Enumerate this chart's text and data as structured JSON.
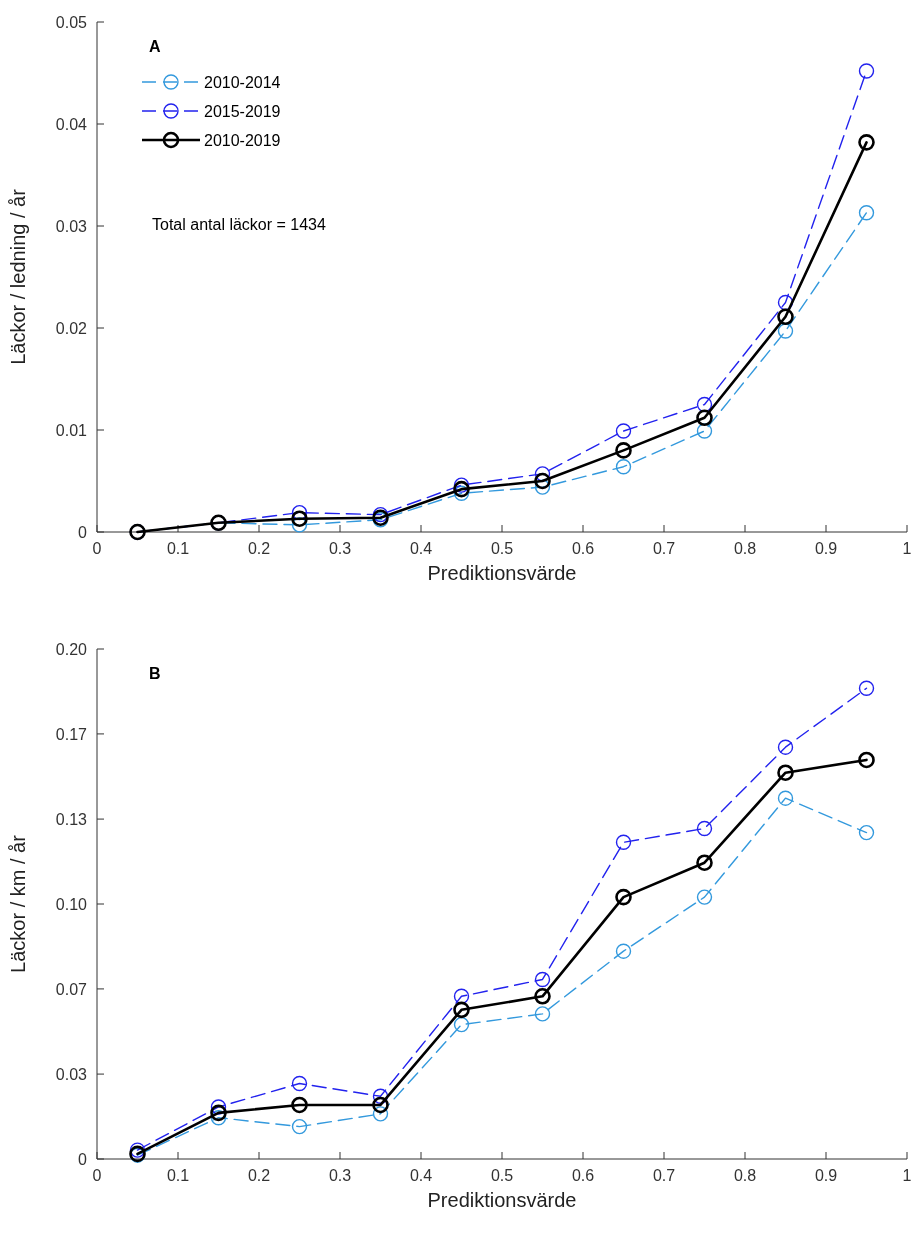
{
  "chart_data": [
    {
      "type": "line",
      "xlabel": "Prediktionsvärde",
      "ylabel": "Läckor / ledning / år",
      "x": [
        0.05,
        0.15,
        0.25,
        0.35,
        0.45,
        0.55,
        0.65,
        0.75,
        0.85,
        0.95
      ],
      "xlim": [
        0,
        1
      ],
      "xticks": [
        0,
        0.1,
        0.2,
        0.3,
        0.4,
        0.5,
        0.6,
        0.7,
        0.8,
        0.9,
        1
      ],
      "ylim": [
        0,
        0.05
      ],
      "yticks": [
        0,
        0.01,
        0.02,
        0.03,
        0.04,
        0.05
      ],
      "grid": false,
      "legend": "top left",
      "marker": "circle",
      "annotations": [
        "A",
        "Total antal läckor = 1434"
      ],
      "series": [
        {
          "name": "2010-2014",
          "color": "#3399dd",
          "line_style": "dashed",
          "values": [
            0,
            0.0009,
            0.0007,
            0.0012,
            0.0038,
            0.0044,
            0.0064,
            0.0099,
            0.0197,
            0.0313
          ]
        },
        {
          "name": "2015-2019",
          "color": "#2222ee",
          "line_style": "dashed",
          "values": [
            0,
            0.0009,
            0.0019,
            0.0017,
            0.0046,
            0.0057,
            0.0099,
            0.0125,
            0.0225,
            0.0452
          ]
        },
        {
          "name": "2010-2019",
          "color": "#000000",
          "line_style": "solid",
          "values": [
            0,
            0.0009,
            0.0013,
            0.0014,
            0.0042,
            0.005,
            0.008,
            0.0112,
            0.0211,
            0.0382
          ]
        }
      ]
    },
    {
      "type": "line",
      "xlabel": "Prediktionsvärde",
      "ylabel": "Läckor / km / år",
      "x": [
        0.05,
        0.15,
        0.25,
        0.35,
        0.45,
        0.55,
        0.65,
        0.75,
        0.85,
        0.95
      ],
      "xlim": [
        0,
        1
      ],
      "xticks": [
        0,
        0.1,
        0.2,
        0.3,
        0.4,
        0.5,
        0.6,
        0.7,
        0.8,
        0.9,
        1
      ],
      "ylim": [
        0,
        0.2
      ],
      "yticks": [
        0,
        {
          "value": 0.0333,
          "label": "0.03"
        },
        {
          "value": 0.0667,
          "label": "0.07"
        },
        {
          "value": 0.1,
          "label": "0.10"
        },
        {
          "value": 0.1333,
          "label": "0.13"
        },
        {
          "value": 0.1667,
          "label": "0.17"
        },
        {
          "value": 0.2,
          "label": "0.20"
        }
      ],
      "grid": false,
      "marker": "circle",
      "annotations": [
        "B"
      ],
      "series": [
        {
          "color": "#3399dd",
          "line_style": "dashed",
          "values": [
            0.0015,
            0.0162,
            0.0127,
            0.0177,
            0.0527,
            0.0569,
            0.0815,
            0.1027,
            0.1415,
            0.128
          ]
        },
        {
          "color": "#2222ee",
          "line_style": "dashed",
          "values": [
            0.0035,
            0.0204,
            0.0296,
            0.0246,
            0.0638,
            0.0704,
            0.1242,
            0.1296,
            0.1615,
            0.1846
          ]
        },
        {
          "color": "#000000",
          "line_style": "solid",
          "values": [
            0.002,
            0.0181,
            0.0212,
            0.0212,
            0.0585,
            0.0638,
            0.1027,
            0.1162,
            0.1515,
            0.1565
          ]
        }
      ]
    }
  ]
}
